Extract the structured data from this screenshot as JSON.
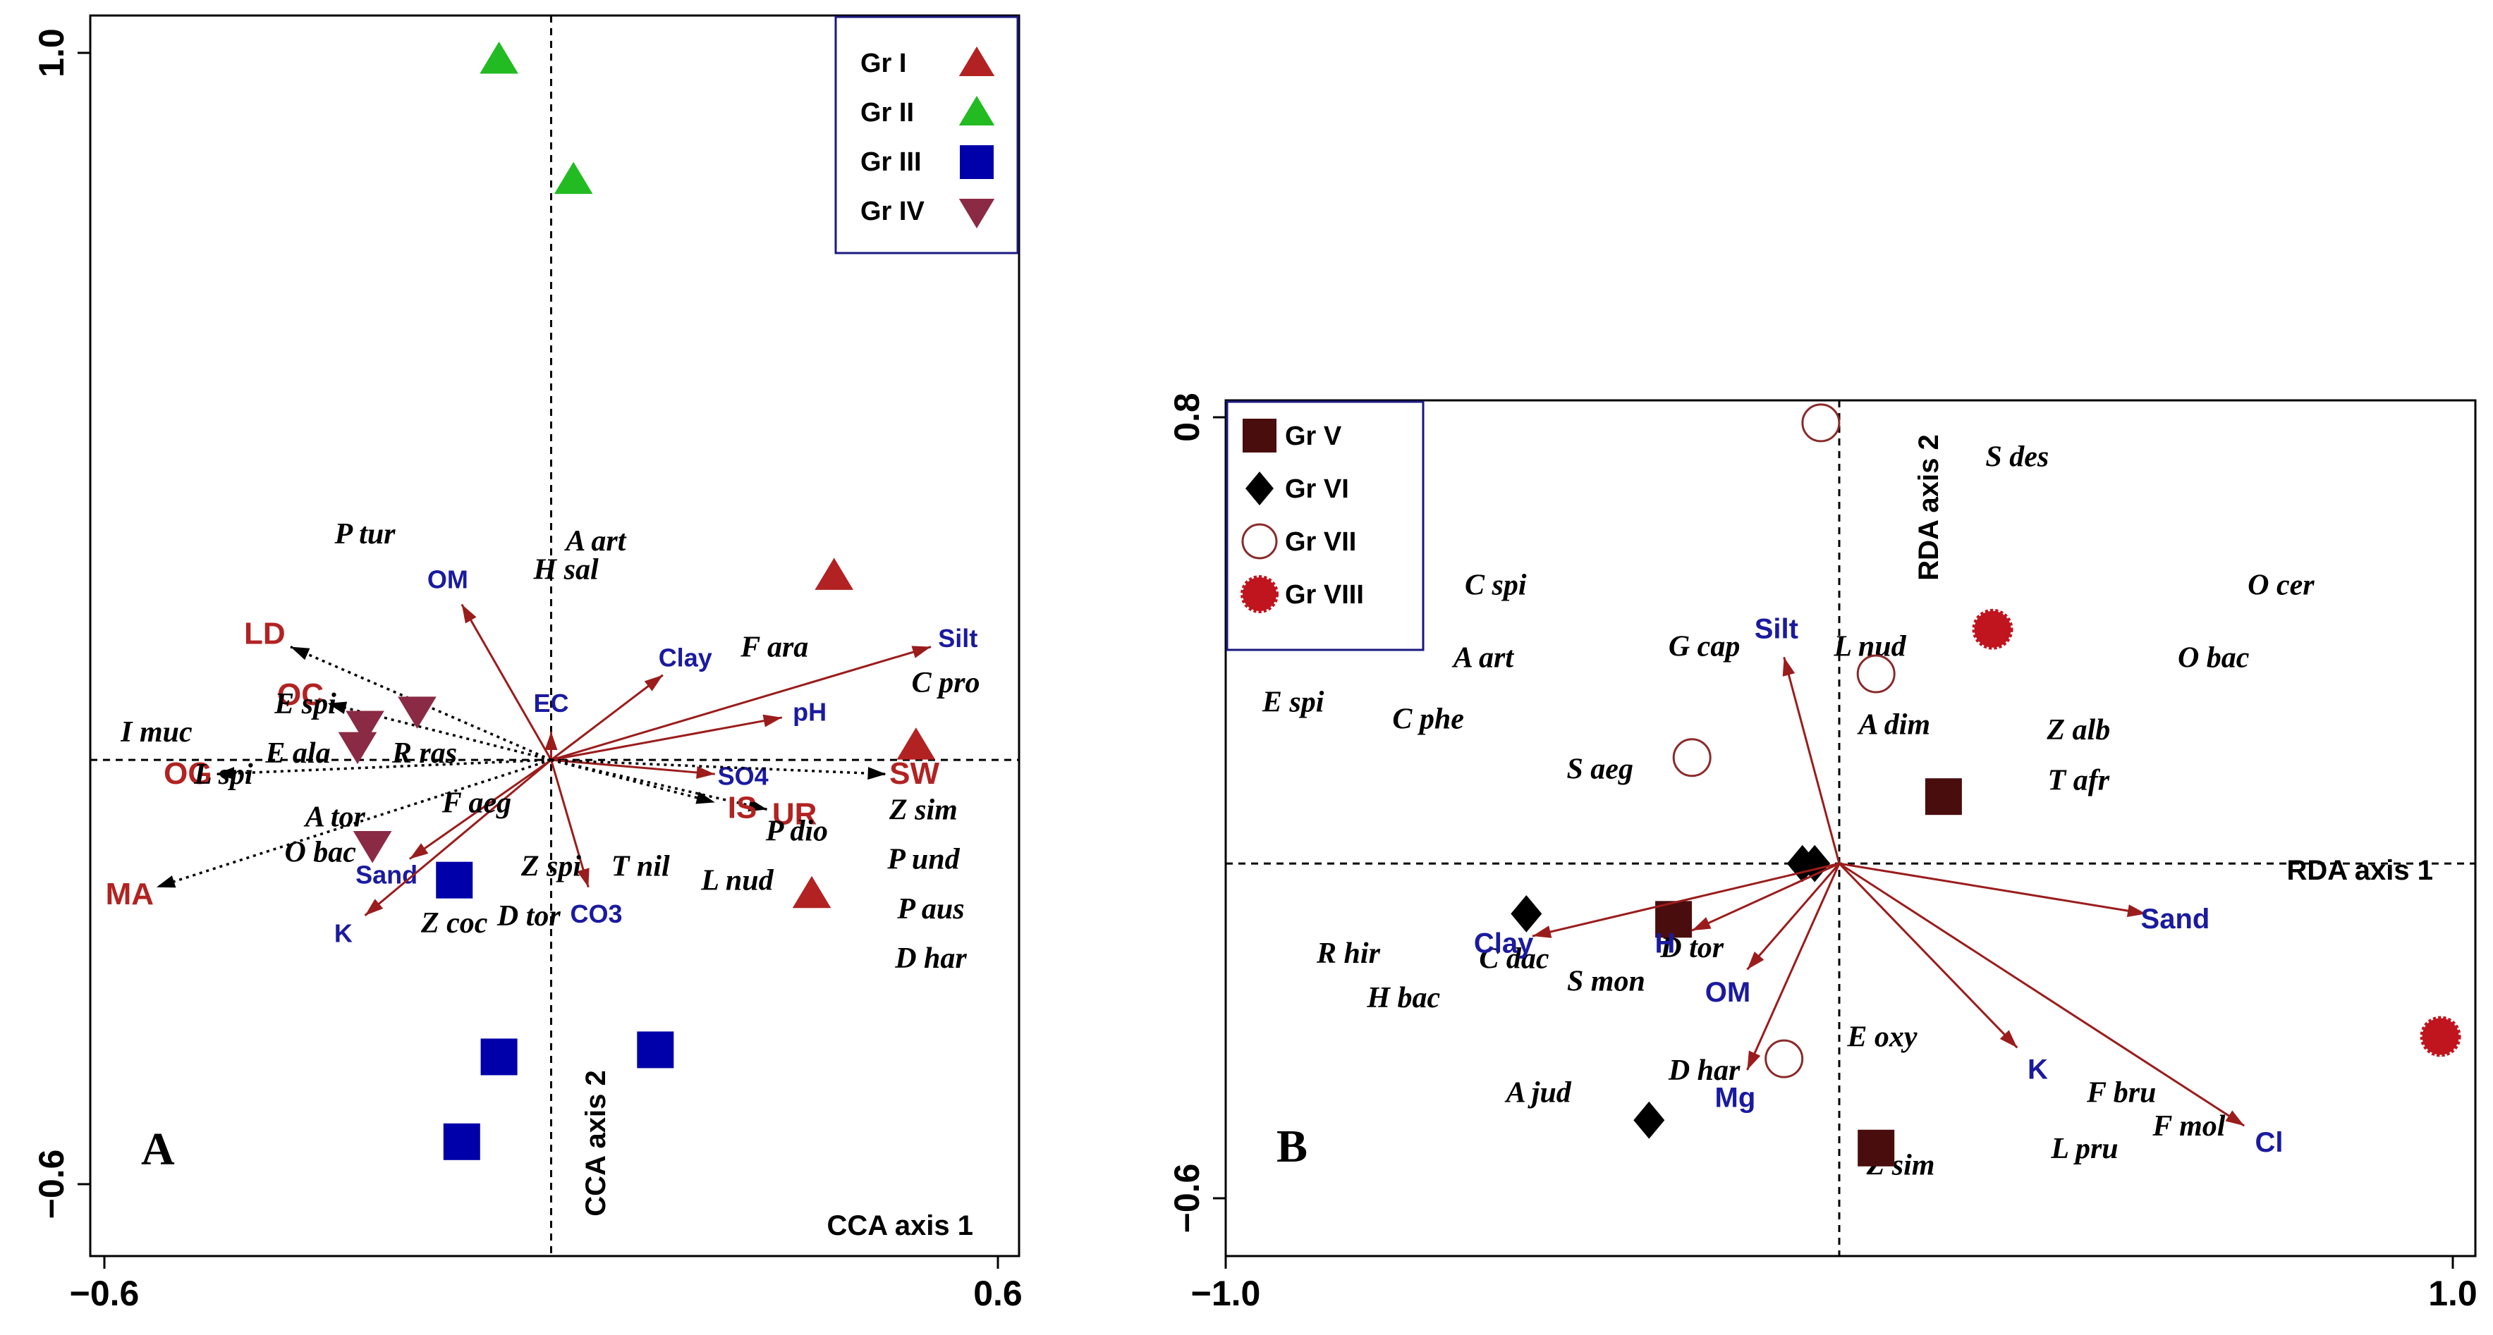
{
  "colors": {
    "arrow": "#9b1c1c",
    "gr1": "#b22222",
    "gr2": "#22bb22",
    "gr3": "#0000aa",
    "gr4": "#8b2a45",
    "gr5": "#4a0d0d",
    "gr6": "#000000",
    "gr7": "#8b2a2a",
    "gr8": "#c0141e",
    "env_red": "#b22222",
    "env_blue": "#1a1aa0",
    "frame_blue": "#1a1a80"
  },
  "chart_data": [
    {
      "type": "scatter",
      "panel_label": "A",
      "xlabel": "CCA axis 1",
      "ylabel": "CCA axis 2",
      "xlim": [
        -0.6,
        0.6
      ],
      "ylim": [
        -0.6,
        1.0
      ],
      "x_ticks": [
        "−0.6",
        "0.6"
      ],
      "y_ticks": [
        "1.0",
        "−0.6"
      ],
      "legend": [
        "Gr I",
        "Gr II",
        "Gr III",
        "Gr IV"
      ],
      "sites": [
        {
          "group": 1,
          "x": 0.38,
          "y": 0.26
        },
        {
          "group": 1,
          "x": 0.49,
          "y": 0.02
        },
        {
          "group": 1,
          "x": 0.35,
          "y": -0.19
        },
        {
          "group": 2,
          "x": -0.07,
          "y": 0.99
        },
        {
          "group": 2,
          "x": 0.03,
          "y": 0.82
        },
        {
          "group": 3,
          "x": -0.13,
          "y": -0.17
        },
        {
          "group": 3,
          "x": -0.07,
          "y": -0.42
        },
        {
          "group": 3,
          "x": 0.14,
          "y": -0.41
        },
        {
          "group": 3,
          "x": -0.12,
          "y": -0.54
        },
        {
          "group": 4,
          "x": -0.18,
          "y": 0.07
        },
        {
          "group": 4,
          "x": -0.25,
          "y": 0.05
        },
        {
          "group": 4,
          "x": -0.26,
          "y": 0.02
        },
        {
          "group": 4,
          "x": -0.24,
          "y": -0.12
        }
      ],
      "env_arrows": [
        {
          "label": "OM",
          "color": "blue",
          "x": -0.12,
          "y": 0.22
        },
        {
          "label": "Clay",
          "color": "blue",
          "x": 0.15,
          "y": 0.12
        },
        {
          "label": "Silt",
          "color": "blue",
          "x": 0.51,
          "y": 0.16
        },
        {
          "label": "pH",
          "color": "blue",
          "x": 0.31,
          "y": 0.06
        },
        {
          "label": "EC",
          "color": "blue",
          "x": 0.0,
          "y": 0.04
        },
        {
          "label": "SO4",
          "color": "blue",
          "x": 0.22,
          "y": -0.02
        },
        {
          "label": "CO3",
          "color": "blue",
          "x": 0.05,
          "y": -0.18
        },
        {
          "label": "Sand",
          "color": "blue",
          "x": -0.19,
          "y": -0.14
        },
        {
          "label": "K",
          "color": "blue",
          "x": -0.25,
          "y": -0.22
        },
        {
          "label": "UR",
          "color": "red",
          "x": 0.29,
          "y": -0.07
        },
        {
          "label": "IS",
          "color": "red",
          "x": 0.22,
          "y": -0.06
        },
        {
          "label": "SW",
          "color": "red",
          "x": 0.45,
          "y": -0.02
        },
        {
          "label": "OC",
          "color": "red",
          "x": -0.3,
          "y": 0.08
        },
        {
          "label": "LD",
          "color": "red",
          "x": -0.35,
          "y": 0.16
        },
        {
          "label": "OG",
          "color": "red",
          "x": -0.45,
          "y": -0.02
        },
        {
          "label": "MA",
          "color": "red",
          "x": -0.53,
          "y": -0.18
        }
      ],
      "species": [
        {
          "name": "P tur",
          "x": -0.25,
          "y": 0.32
        },
        {
          "name": "A art",
          "x": 0.06,
          "y": 0.31
        },
        {
          "name": "H sal",
          "x": 0.02,
          "y": 0.27
        },
        {
          "name": "F ara",
          "x": 0.3,
          "y": 0.16
        },
        {
          "name": "C pro",
          "x": 0.53,
          "y": 0.11
        },
        {
          "name": "E spi",
          "x": -0.33,
          "y": 0.08
        },
        {
          "name": "I muc",
          "x": -0.53,
          "y": 0.04
        },
        {
          "name": "E ala",
          "x": -0.34,
          "y": 0.01
        },
        {
          "name": "R ras",
          "x": -0.17,
          "y": 0.01
        },
        {
          "name": "L spi",
          "x": -0.44,
          "y": -0.02
        },
        {
          "name": "F aeg",
          "x": -0.1,
          "y": -0.06
        },
        {
          "name": "A tor",
          "x": -0.29,
          "y": -0.08
        },
        {
          "name": "O bac",
          "x": -0.31,
          "y": -0.13
        },
        {
          "name": "Z spi",
          "x": 0.0,
          "y": -0.15
        },
        {
          "name": "T nil",
          "x": 0.12,
          "y": -0.15
        },
        {
          "name": "P dio",
          "x": 0.33,
          "y": -0.1
        },
        {
          "name": "Z sim",
          "x": 0.5,
          "y": -0.07
        },
        {
          "name": "P und",
          "x": 0.5,
          "y": -0.14
        },
        {
          "name": "L nud",
          "x": 0.25,
          "y": -0.17
        },
        {
          "name": "D tor",
          "x": -0.03,
          "y": -0.22
        },
        {
          "name": "Z coc",
          "x": -0.13,
          "y": -0.23
        },
        {
          "name": "P aus",
          "x": 0.51,
          "y": -0.21
        },
        {
          "name": "D har",
          "x": 0.51,
          "y": -0.28
        }
      ]
    },
    {
      "type": "scatter",
      "panel_label": "B",
      "xlabel": "RDA axis 1",
      "ylabel": "RDA axis 2",
      "xlim": [
        -1.0,
        1.0
      ],
      "ylim": [
        -0.6,
        0.8
      ],
      "x_ticks": [
        "−1.0",
        "1.0"
      ],
      "y_ticks": [
        "0.8",
        "−0.6"
      ],
      "legend": [
        "Gr V",
        "Gr VI",
        "Gr VII",
        "Gr VIII"
      ],
      "sites": [
        {
          "group": 5,
          "x": 0.17,
          "y": 0.12
        },
        {
          "group": 5,
          "x": -0.27,
          "y": -0.1
        },
        {
          "group": 5,
          "x": 0.06,
          "y": -0.51
        },
        {
          "group": 6,
          "x": -0.51,
          "y": -0.09
        },
        {
          "group": 6,
          "x": -0.31,
          "y": -0.46
        },
        {
          "group": 6,
          "x": -0.06,
          "y": 0.0
        },
        {
          "group": 6,
          "x": -0.04,
          "y": 0.0
        },
        {
          "group": 7,
          "x": -0.03,
          "y": 0.79
        },
        {
          "group": 7,
          "x": 0.06,
          "y": 0.34
        },
        {
          "group": 7,
          "x": -0.24,
          "y": 0.19
        },
        {
          "group": 7,
          "x": -0.09,
          "y": -0.35
        },
        {
          "group": 8,
          "x": 0.25,
          "y": 0.42
        },
        {
          "group": 8,
          "x": 0.98,
          "y": -0.31
        }
      ],
      "env_arrows": [
        {
          "label": "Silt",
          "x": -0.09,
          "y": 0.37
        },
        {
          "label": "Clay",
          "x": -0.5,
          "y": -0.13
        },
        {
          "label": "H",
          "x": -0.24,
          "y": -0.12
        },
        {
          "label": "OM",
          "x": -0.15,
          "y": -0.19
        },
        {
          "label": "Mg",
          "x": -0.15,
          "y": -0.37
        },
        {
          "label": "K",
          "x": 0.29,
          "y": -0.33
        },
        {
          "label": "Sand",
          "x": 0.5,
          "y": -0.09
        },
        {
          "label": "Cl",
          "x": 0.66,
          "y": -0.47
        }
      ],
      "species": [
        {
          "name": "S des",
          "x": 0.29,
          "y": 0.73
        },
        {
          "name": "O cer",
          "x": 0.72,
          "y": 0.5
        },
        {
          "name": "C spi",
          "x": -0.56,
          "y": 0.5
        },
        {
          "name": "A art",
          "x": -0.58,
          "y": 0.37
        },
        {
          "name": "G cap",
          "x": -0.22,
          "y": 0.39
        },
        {
          "name": "L nud",
          "x": 0.05,
          "y": 0.39
        },
        {
          "name": "O bac",
          "x": 0.61,
          "y": 0.37
        },
        {
          "name": "E spi",
          "x": -0.89,
          "y": 0.29
        },
        {
          "name": "C phe",
          "x": -0.67,
          "y": 0.26
        },
        {
          "name": "A dim",
          "x": 0.09,
          "y": 0.25
        },
        {
          "name": "Z alb",
          "x": 0.39,
          "y": 0.24
        },
        {
          "name": "T afr",
          "x": 0.39,
          "y": 0.15
        },
        {
          "name": "S aeg",
          "x": -0.39,
          "y": 0.17
        },
        {
          "name": "D tor",
          "x": -0.24,
          "y": -0.15
        },
        {
          "name": "R hir",
          "x": -0.8,
          "y": -0.16
        },
        {
          "name": "C dac",
          "x": -0.53,
          "y": -0.17
        },
        {
          "name": "S mon",
          "x": -0.38,
          "y": -0.21
        },
        {
          "name": "H bac",
          "x": -0.71,
          "y": -0.24
        },
        {
          "name": "E oxy",
          "x": 0.07,
          "y": -0.31
        },
        {
          "name": "D har",
          "x": -0.22,
          "y": -0.37
        },
        {
          "name": "A jud",
          "x": -0.49,
          "y": -0.41
        },
        {
          "name": "F bru",
          "x": 0.46,
          "y": -0.41
        },
        {
          "name": "F mol",
          "x": 0.57,
          "y": -0.47
        },
        {
          "name": "L pru",
          "x": 0.4,
          "y": -0.51
        },
        {
          "name": "Z sim",
          "x": 0.1,
          "y": -0.54
        }
      ]
    }
  ]
}
